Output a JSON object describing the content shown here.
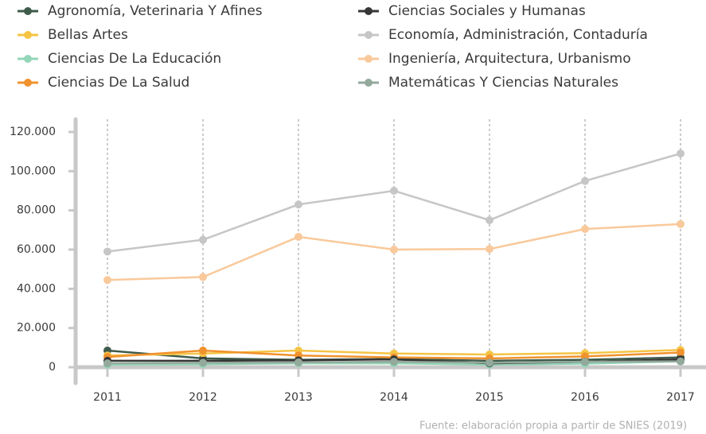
{
  "chart_data": {
    "type": "line",
    "categories": [
      "2011",
      "2012",
      "2013",
      "2014",
      "2015",
      "2016",
      "2017"
    ],
    "series": [
      {
        "name": "Agronomía, Veterinaria Y Afines",
        "color": "#3f5b4b",
        "values": [
          8500,
          4500,
          3800,
          4200,
          3300,
          3800,
          5000
        ]
      },
      {
        "name": "Bellas Artes",
        "color": "#f5c445",
        "values": [
          6000,
          7000,
          8500,
          7000,
          6500,
          7200,
          8800
        ]
      },
      {
        "name": "Ciencias De La Educación",
        "color": "#93d6b8",
        "values": [
          1300,
          1500,
          2000,
          2000,
          1300,
          1800,
          3000
        ]
      },
      {
        "name": "Ciencias De La Salud",
        "color": "#f0922e",
        "values": [
          5200,
          8500,
          6000,
          5000,
          4500,
          5500,
          7500
        ]
      },
      {
        "name": "Ciencias Sociales y Humanas",
        "color": "#363636",
        "values": [
          3300,
          3300,
          3500,
          4000,
          2000,
          2800,
          4000
        ]
      },
      {
        "name": "Economía, Administración, Contaduría",
        "color": "#c6c6c6",
        "values": [
          59000,
          65000,
          83000,
          90000,
          75000,
          95000,
          109000
        ]
      },
      {
        "name": "Ingeniería, Arquitectura, Urbanismo",
        "color": "#f9c99b",
        "values": [
          44500,
          46000,
          66500,
          60000,
          60300,
          70500,
          73000
        ]
      },
      {
        "name": "Matemáticas Y Ciencias Naturales",
        "color": "#93a99c",
        "values": [
          2000,
          2300,
          2500,
          2800,
          2300,
          2800,
          3000
        ]
      }
    ],
    "ylim": [
      0,
      120000
    ],
    "yticks": [
      0,
      {
        "value": 20000,
        "label": "20.000"
      },
      {
        "value": 40000,
        "label": "40.000"
      },
      {
        "value": 60000,
        "label": "60.000"
      },
      {
        "value": 80000,
        "label": "80.000"
      },
      {
        "value": 100000,
        "label": "100.000"
      },
      {
        "value": 120000,
        "label": "120.000"
      }
    ],
    "grid": true,
    "source": "Fuente: elaboración propia a partir de SNIES (2019)"
  }
}
